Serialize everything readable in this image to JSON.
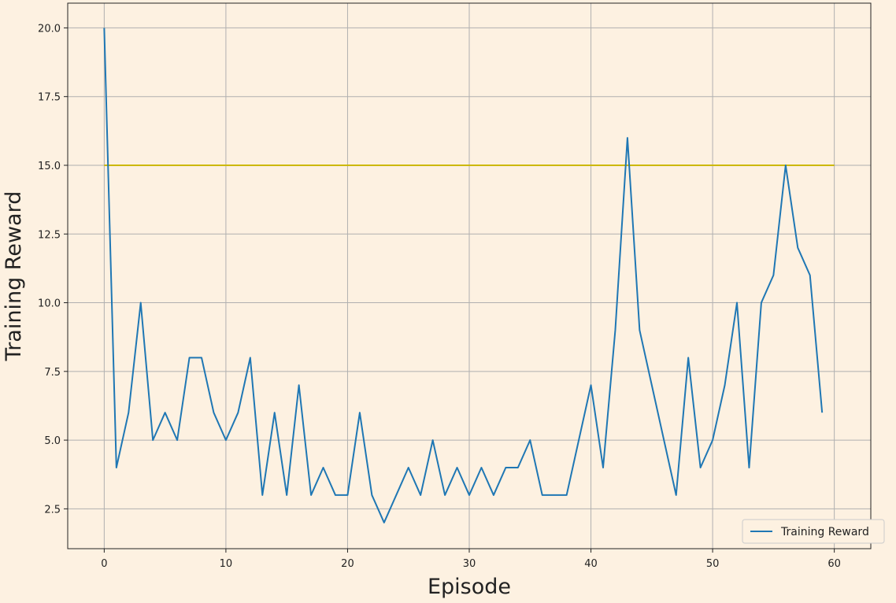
{
  "chart_data": {
    "type": "line",
    "title": "",
    "xlabel": "Episode",
    "ylabel": "Training Reward",
    "xlim": [
      -3,
      63
    ],
    "ylim": [
      1.05,
      20.9
    ],
    "xticks": [
      0,
      10,
      20,
      30,
      40,
      50,
      60
    ],
    "xtick_labels": [
      "0",
      "10",
      "20",
      "30",
      "40",
      "50",
      "60"
    ],
    "yticks": [
      2.5,
      5.0,
      7.5,
      10.0,
      12.5,
      15.0,
      17.5,
      20.0
    ],
    "ytick_labels": [
      "2.5",
      "5.0",
      "7.5",
      "10.0",
      "12.5",
      "15.0",
      "17.5",
      "20.0"
    ],
    "grid": true,
    "legend_position": "lower-right",
    "series": [
      {
        "name": "Training Reward",
        "color": "#1f77b4",
        "x": [
          0,
          1,
          2,
          3,
          4,
          5,
          6,
          7,
          8,
          9,
          10,
          11,
          12,
          13,
          14,
          15,
          16,
          17,
          18,
          19,
          20,
          21,
          22,
          23,
          24,
          25,
          26,
          27,
          28,
          29,
          30,
          31,
          32,
          33,
          34,
          35,
          36,
          37,
          38,
          39,
          40,
          41,
          42,
          43,
          44,
          45,
          46,
          47,
          48,
          49,
          50,
          51,
          52,
          53,
          54,
          55,
          56,
          57,
          58,
          59
        ],
        "values": [
          20,
          4,
          6,
          10,
          5,
          6,
          5,
          8,
          8,
          6,
          5,
          6,
          8,
          3,
          6,
          3,
          7,
          3,
          4,
          3,
          3,
          6,
          3,
          2,
          3,
          4,
          3,
          5,
          3,
          4,
          3,
          4,
          3,
          4,
          4,
          5,
          3,
          3,
          3,
          5,
          7,
          4,
          9,
          16,
          9,
          7,
          5,
          3,
          8,
          4,
          5,
          7,
          10,
          4,
          10,
          11,
          15,
          12,
          11,
          6
        ]
      }
    ],
    "reference_line": {
      "y": 15,
      "x_range": [
        0,
        60
      ],
      "color": "#ccb800"
    }
  }
}
